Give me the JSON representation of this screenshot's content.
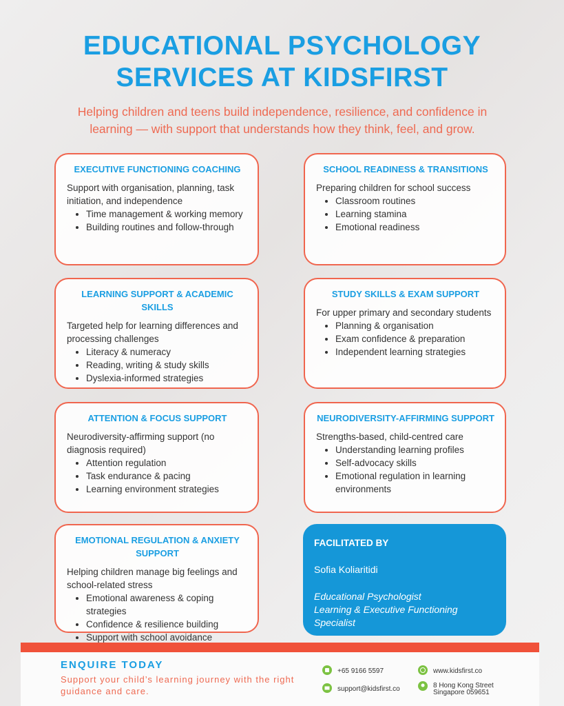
{
  "header": {
    "title": "EDUCATIONAL PSYCHOLOGY SERVICES AT KIDSFIRST",
    "subtitle": "Helping children and teens build independence, resilience, and confidence in learning — with support that understands how they think, feel, and grow."
  },
  "services": [
    {
      "title": "EXECUTIVE FUNCTIONING COACHING",
      "intro": "Support with organisation, planning, task initiation, and independence",
      "items": [
        "Time management & working memory",
        "Building routines and follow-through"
      ]
    },
    {
      "title": "SCHOOL READINESS & TRANSITIONS",
      "intro": "Preparing children for school success",
      "items": [
        "Classroom routines",
        "Learning stamina",
        "Emotional readiness"
      ]
    },
    {
      "title": "LEARNING SUPPORT & ACADEMIC SKILLS",
      "intro": "Targeted help for learning differences and processing challenges",
      "items": [
        "Literacy & numeracy",
        "Reading, writing & study skills",
        "Dyslexia-informed strategies"
      ]
    },
    {
      "title": "STUDY SKILLS & EXAM SUPPORT",
      "intro": "For upper primary and secondary students",
      "items": [
        "Planning & organisation",
        "Exam confidence & preparation",
        "Independent learning strategies"
      ]
    },
    {
      "title": "ATTENTION & FOCUS SUPPORT",
      "intro": "Neurodiversity-affirming support (no diagnosis required)",
      "items": [
        "Attention regulation",
        "Task endurance & pacing",
        "Learning environment strategies"
      ]
    },
    {
      "title": "NEURODIVERSITY-AFFIRMING SUPPORT",
      "intro": "Strengths-based, child-centred care",
      "items": [
        "Understanding learning profiles",
        "Self-advocacy skills",
        "Emotional regulation in learning environments"
      ]
    },
    {
      "title": "EMOTIONAL REGULATION & ANXIETY SUPPORT",
      "intro": "Helping children manage big feelings and school-related stress",
      "items": [
        "Emotional awareness & coping strategies",
        "Confidence & resilience building",
        "Support with school avoidance"
      ]
    }
  ],
  "facilitator": {
    "heading": "FACILITATED BY",
    "name": "Sofia Koliaritidi",
    "role": [
      "Educational Psychologist",
      "Learning & Executive Functioning Specialist"
    ]
  },
  "footer": {
    "heading": "ENQUIRE TODAY",
    "tagline": "Support your child’s learning journey with the right guidance and care.",
    "phone": "+65 9166 5597",
    "email": "support@kidsfirst.co",
    "website": "www.kidsfirst.co",
    "address": [
      "8 Hong Kong Street",
      "Singapore 059651"
    ]
  }
}
